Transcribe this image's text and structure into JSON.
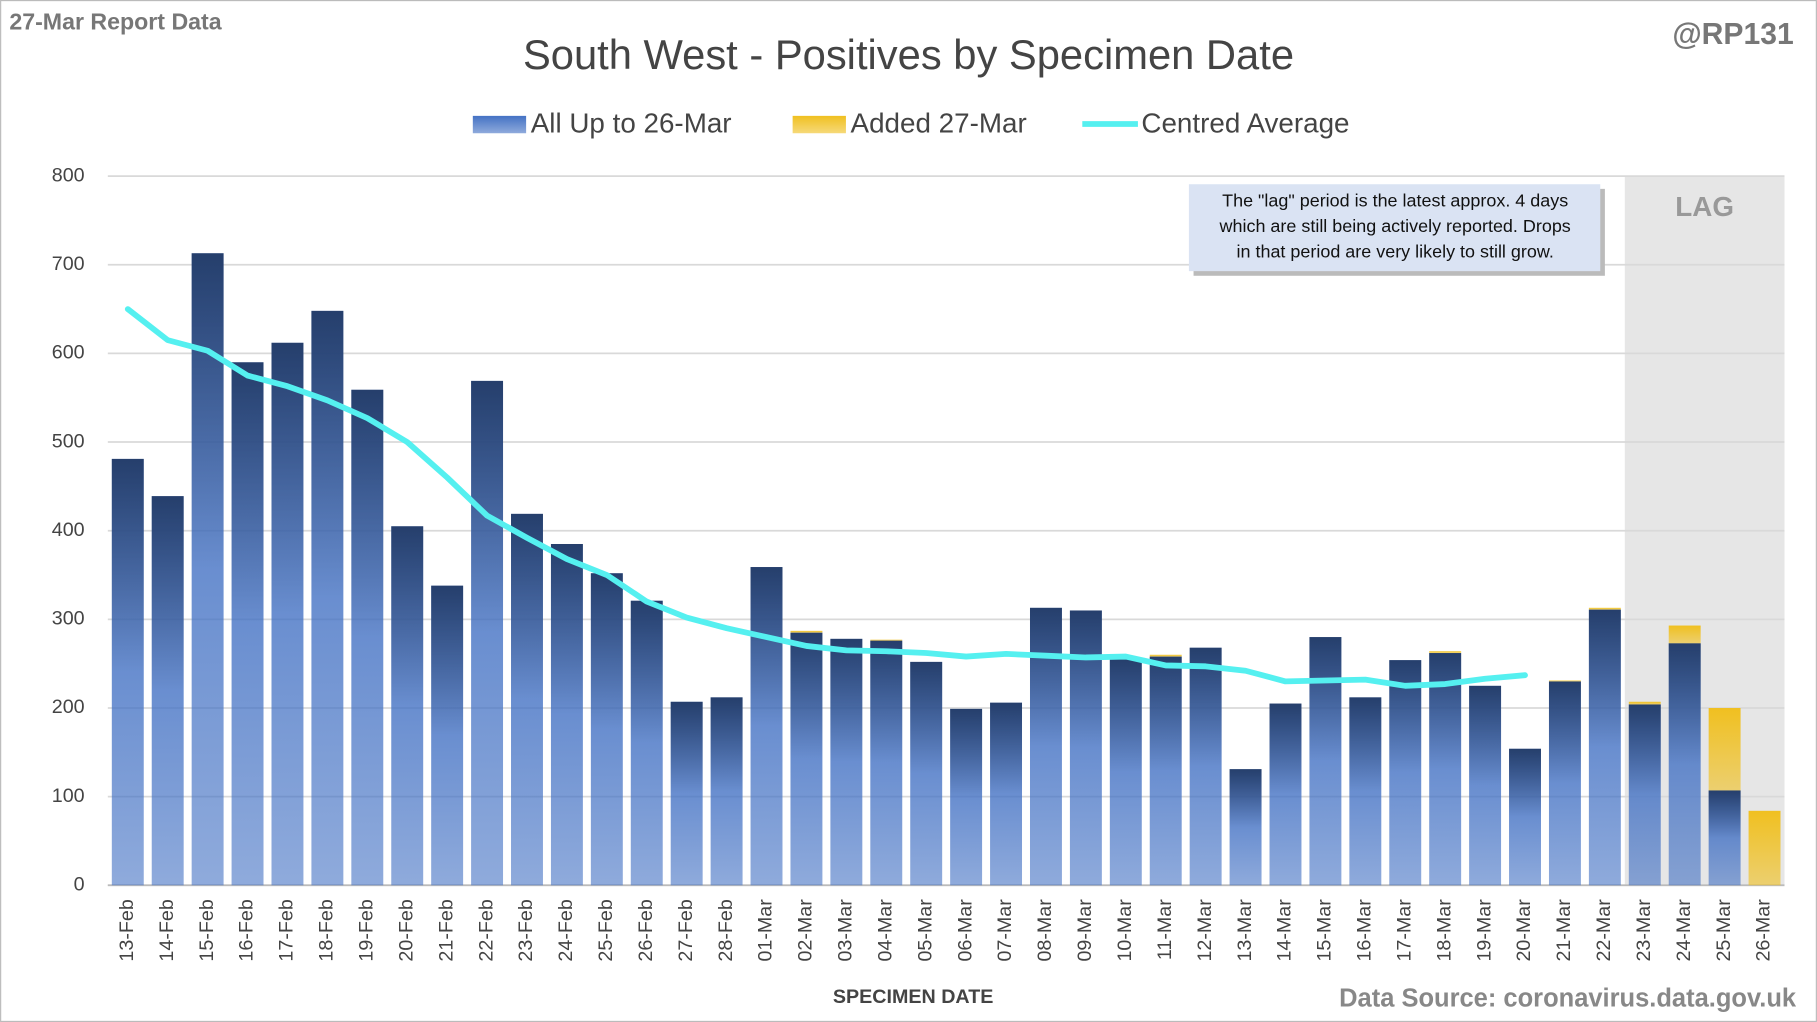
{
  "chart_data": {
    "type": "bar",
    "report_label": "27-Mar Report Data",
    "handle": "@RP131",
    "title": "South West - Positives by Specimen Date",
    "x_label": "SPECIMEN DATE",
    "source": "Data Source: coronavirus.data.gov.uk",
    "lag_label": "LAG",
    "annotation": [
      "The \"lag\" period is the latest approx. 4 days",
      "which are still being actively reported.  Drops",
      "in that period are very likely to still grow."
    ],
    "categories": [
      "13-Feb",
      "14-Feb",
      "15-Feb",
      "16-Feb",
      "17-Feb",
      "18-Feb",
      "19-Feb",
      "20-Feb",
      "21-Feb",
      "22-Feb",
      "23-Feb",
      "24-Feb",
      "25-Feb",
      "26-Feb",
      "27-Feb",
      "28-Feb",
      "01-Mar",
      "02-Mar",
      "03-Mar",
      "04-Mar",
      "05-Mar",
      "06-Mar",
      "07-Mar",
      "08-Mar",
      "09-Mar",
      "10-Mar",
      "11-Mar",
      "12-Mar",
      "13-Mar",
      "14-Mar",
      "15-Mar",
      "16-Mar",
      "17-Mar",
      "18-Mar",
      "19-Mar",
      "20-Mar",
      "21-Mar",
      "22-Mar",
      "23-Mar",
      "24-Mar",
      "25-Mar",
      "26-Mar"
    ],
    "series": [
      {
        "name": "All Up to 26-Mar",
        "color": "#4472c4",
        "values": [
          481,
          439,
          713,
          590,
          612,
          648,
          559,
          405,
          338,
          569,
          419,
          385,
          352,
          321,
          207,
          212,
          359,
          285,
          278,
          276,
          252,
          199,
          206,
          313,
          310,
          255,
          258,
          268,
          131,
          205,
          280,
          212,
          254,
          262,
          225,
          154,
          230,
          311,
          204,
          273,
          107,
          0
        ]
      },
      {
        "name": "Added 27-Mar",
        "color": "#f0c020",
        "values": [
          0,
          0,
          0,
          0,
          0,
          0,
          0,
          0,
          0,
          0,
          0,
          0,
          0,
          0,
          0,
          0,
          0,
          2,
          0,
          1,
          0,
          0,
          0,
          0,
          0,
          0,
          2,
          0,
          0,
          0,
          0,
          0,
          0,
          2,
          0,
          0,
          1,
          2,
          3,
          20,
          93,
          84
        ]
      },
      {
        "name": "Centred Average",
        "color": "#55f0f0",
        "type": "line",
        "values": [
          650,
          615,
          603,
          575,
          563,
          547,
          527,
          500,
          460,
          417,
          392,
          368,
          350,
          320,
          302,
          290,
          280,
          270,
          265,
          264,
          262,
          258,
          261,
          259,
          257,
          258,
          248,
          247,
          242,
          230,
          231,
          232,
          225,
          227,
          233,
          237,
          null,
          null,
          null,
          null,
          null,
          null
        ]
      }
    ],
    "lag_start": "23-Mar",
    "ylim": [
      0,
      800
    ],
    "yticks": [
      0,
      100,
      200,
      300,
      400,
      500,
      600,
      700,
      800
    ],
    "grid": true
  }
}
